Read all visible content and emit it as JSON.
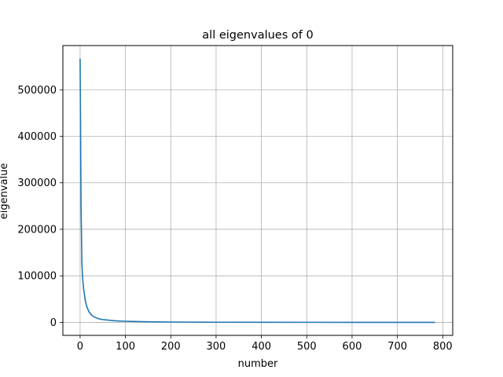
{
  "chart_data": {
    "type": "line",
    "title": "all eigenvalues of 0",
    "xlabel": "number",
    "ylabel": "eigenvalue",
    "xlim": [
      -38,
      822
    ],
    "ylim": [
      -28000,
      595000
    ],
    "xticks": [
      0,
      100,
      200,
      300,
      400,
      500,
      600,
      700,
      800
    ],
    "yticks": [
      0,
      100000,
      200000,
      300000,
      400000,
      500000
    ],
    "grid": true,
    "series": [
      {
        "color": "#1f77b4",
        "x": [
          0,
          1,
          2,
          3,
          4,
          5,
          6,
          8,
          10,
          12,
          15,
          20,
          25,
          30,
          40,
          50,
          60,
          70,
          80,
          100,
          120,
          150,
          200,
          250,
          300,
          400,
          500,
          600,
          700,
          783
        ],
        "y": [
          567000,
          425000,
          260000,
          190000,
          125000,
          105000,
          90000,
          70000,
          57000,
          44000,
          33000,
          22000,
          16000,
          12000,
          8000,
          6000,
          5000,
          4000,
          3200,
          2400,
          1800,
          1200,
          700,
          500,
          300,
          150,
          80,
          40,
          15,
          0
        ]
      }
    ]
  }
}
